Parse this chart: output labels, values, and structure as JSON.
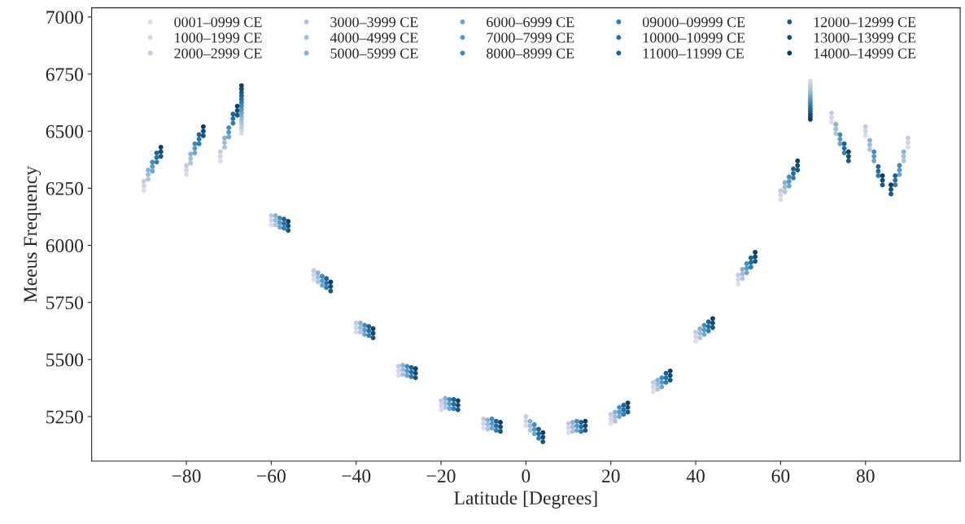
{
  "chart_data": {
    "type": "scatter",
    "xlabel": "Latitude [Degrees]",
    "ylabel": "Meeus Frequency",
    "marker": "circle",
    "grid": false,
    "legend": "top",
    "xlim": [
      -102.3,
      102.3
    ],
    "ylim": [
      5055,
      7040
    ],
    "xticks": [
      {
        "value": -80,
        "label": "−80"
      },
      {
        "value": -60,
        "label": "−60"
      },
      {
        "value": -40,
        "label": "−40"
      },
      {
        "value": -20,
        "label": "−20"
      },
      0,
      20,
      40,
      60,
      80
    ],
    "yticks": [
      5250,
      5500,
      5750,
      6000,
      6250,
      6500,
      6750,
      7000
    ],
    "series": [
      {
        "name": "0001–0999 CE",
        "color": "#dcdcec",
        "x": [
          -90,
          -80,
          -72,
          -67,
          -60,
          -50,
          -40,
          -30,
          -20,
          -10,
          0,
          10,
          20,
          30,
          40,
          50,
          60,
          67,
          72,
          80,
          90
        ],
        "values": [
          6240,
          6310,
          6370,
          6490,
          6090,
          5850,
          5620,
          5430,
          5280,
          5200,
          5210,
          5180,
          5220,
          5360,
          5580,
          5830,
          6200,
          6720,
          6540,
          6480,
          6430
        ]
      },
      {
        "name": "1000–1999 CE",
        "color": "#d0d4e8",
        "x": [
          -90,
          -80,
          -72,
          -67,
          -60,
          -50,
          -40,
          -30,
          -20,
          -10,
          0,
          10,
          20,
          30,
          40,
          50,
          60,
          67,
          72,
          80,
          90
        ],
        "values": [
          6260,
          6330,
          6390,
          6505,
          6110,
          5870,
          5640,
          5450,
          5300,
          5220,
          5230,
          5200,
          5240,
          5380,
          5600,
          5850,
          6220,
          6708,
          6560,
          6500,
          6450
        ]
      },
      {
        "name": "2000–2999 CE",
        "color": "#c3cbe3",
        "x": [
          -90,
          -80,
          -72,
          -67,
          -60,
          -50,
          -40,
          -30,
          -20,
          -10,
          0,
          10,
          20,
          30,
          40,
          50,
          60,
          67,
          72,
          80,
          90
        ],
        "values": [
          6280,
          6350,
          6410,
          6520,
          6130,
          5890,
          5660,
          5470,
          5320,
          5240,
          5250,
          5220,
          5260,
          5400,
          5620,
          5870,
          6240,
          6696,
          6580,
          6520,
          6470
        ]
      },
      {
        "name": "3000–3999 CE",
        "color": "#aec4df",
        "x": [
          -89,
          -79,
          -71,
          -67,
          -59,
          -49,
          -39,
          -29,
          -19,
          -9,
          1,
          11,
          21,
          31,
          41,
          51,
          61,
          67,
          73,
          81,
          89
        ],
        "values": [
          6290,
          6360,
          6430,
          6535,
          6090,
          5840,
          5620,
          5435,
          5290,
          5195,
          5190,
          5185,
          5230,
          5370,
          5595,
          5855,
          6235,
          6684,
          6490,
          6420,
          6370
        ]
      },
      {
        "name": "4000–4999 CE",
        "color": "#9dbedb",
        "x": [
          -89,
          -79,
          -71,
          -67,
          -59,
          -49,
          -39,
          -29,
          -19,
          -9,
          1,
          11,
          21,
          31,
          41,
          51,
          61,
          67,
          73,
          81,
          89
        ],
        "values": [
          6310,
          6380,
          6450,
          6550,
          6110,
          5860,
          5640,
          5455,
          5310,
          5215,
          5210,
          5205,
          5250,
          5390,
          5615,
          5875,
          6255,
          6672,
          6510,
          6440,
          6390
        ]
      },
      {
        "name": "5000–5999 CE",
        "color": "#86b1d5",
        "x": [
          -89,
          -79,
          -71,
          -67,
          -59,
          -49,
          -39,
          -29,
          -19,
          -9,
          1,
          11,
          21,
          31,
          41,
          51,
          61,
          67,
          73,
          81,
          89
        ],
        "values": [
          6330,
          6400,
          6470,
          6565,
          6130,
          5880,
          5660,
          5475,
          5330,
          5235,
          5230,
          5225,
          5270,
          5410,
          5635,
          5895,
          6275,
          6660,
          6530,
          6460,
          6410
        ]
      },
      {
        "name": "6000–6999 CE",
        "color": "#6aa6cf",
        "x": [
          -88,
          -78,
          -70,
          -67,
          -58,
          -48,
          -38,
          -28,
          -18,
          -8,
          2,
          12,
          22,
          32,
          42,
          52,
          62,
          67,
          74,
          82,
          88
        ],
        "values": [
          6325,
          6405,
          6475,
          6580,
          6080,
          5825,
          5610,
          5430,
          5285,
          5200,
          5175,
          5190,
          5250,
          5380,
          5610,
          5880,
          6260,
          6648,
          6445,
          6370,
          6310
        ]
      },
      {
        "name": "7000–7999 CE",
        "color": "#559ac8",
        "x": [
          -88,
          -78,
          -70,
          -67,
          -58,
          -48,
          -38,
          -28,
          -18,
          -8,
          2,
          12,
          22,
          32,
          42,
          52,
          62,
          67,
          74,
          82,
          88
        ],
        "values": [
          6345,
          6425,
          6495,
          6595,
          6100,
          5845,
          5630,
          5450,
          5305,
          5220,
          5195,
          5210,
          5270,
          5400,
          5630,
          5900,
          6280,
          6636,
          6465,
          6390,
          6330
        ]
      },
      {
        "name": "8000–8999 CE",
        "color": "#3f8cc0",
        "x": [
          -88,
          -78,
          -70,
          -67,
          -58,
          -48,
          -38,
          -28,
          -18,
          -8,
          2,
          12,
          22,
          32,
          42,
          52,
          62,
          67,
          74,
          82,
          88
        ],
        "values": [
          6365,
          6445,
          6515,
          6610,
          6120,
          5865,
          5650,
          5470,
          5325,
          5240,
          5215,
          5230,
          5290,
          5420,
          5650,
          5920,
          6300,
          6624,
          6485,
          6410,
          6350
        ]
      },
      {
        "name": "09000–09999 CE",
        "color": "#2c7eb5",
        "x": [
          -87,
          -77,
          -69,
          -67,
          -57,
          -47,
          -37,
          -27,
          -17,
          -7,
          3,
          13,
          23,
          33,
          43,
          53,
          63,
          67,
          75,
          83,
          87
        ],
        "values": [
          6365,
          6445,
          6535,
          6625,
          6075,
          5815,
          5605,
          5425,
          5285,
          5190,
          5155,
          5185,
          5260,
          5400,
          5625,
          5905,
          6295,
          6612,
          6405,
          6305,
          6265
        ]
      },
      {
        "name": "10000–10999 CE",
        "color": "#2170a6",
        "x": [
          -87,
          -77,
          -69,
          -67,
          -57,
          -47,
          -37,
          -27,
          -17,
          -7,
          3,
          13,
          23,
          33,
          43,
          53,
          63,
          67,
          75,
          83,
          87
        ],
        "values": [
          6385,
          6465,
          6555,
          6640,
          6095,
          5835,
          5625,
          5445,
          5305,
          5210,
          5175,
          5205,
          5280,
          5420,
          5645,
          5925,
          6315,
          6600,
          6425,
          6325,
          6285
        ]
      },
      {
        "name": "11000–11999 CE",
        "color": "#1c6394",
        "x": [
          -87,
          -77,
          -69,
          -67,
          -57,
          -47,
          -37,
          -27,
          -17,
          -7,
          3,
          13,
          23,
          33,
          43,
          53,
          63,
          67,
          75,
          83,
          87
        ],
        "values": [
          6405,
          6485,
          6575,
          6655,
          6115,
          5855,
          5645,
          5465,
          5325,
          5230,
          5195,
          5225,
          5300,
          5440,
          5665,
          5945,
          6335,
          6588,
          6445,
          6345,
          6305
        ]
      },
      {
        "name": "12000–12999 CE",
        "color": "#185882",
        "x": [
          -86,
          -76,
          -68,
          -67,
          -56,
          -46,
          -36,
          -26,
          -16,
          -6,
          4,
          14,
          24,
          34,
          44,
          54,
          64,
          67,
          76,
          84,
          86
        ],
        "values": [
          6390,
          6480,
          6570,
          6670,
          6065,
          5800,
          5595,
          5420,
          5280,
          5185,
          5140,
          5190,
          5270,
          5410,
          5640,
          5930,
          6330,
          6576,
          6370,
          6265,
          6225
        ]
      },
      {
        "name": "13000–13999 CE",
        "color": "#134d71",
        "x": [
          -86,
          -76,
          -68,
          -67,
          -56,
          -46,
          -36,
          -26,
          -16,
          -6,
          4,
          14,
          24,
          34,
          44,
          54,
          64,
          67,
          76,
          84,
          86
        ],
        "values": [
          6410,
          6500,
          6590,
          6685,
          6085,
          5820,
          5615,
          5440,
          5300,
          5205,
          5160,
          5210,
          5290,
          5430,
          5660,
          5950,
          6350,
          6564,
          6390,
          6285,
          6245
        ]
      },
      {
        "name": "14000–14999 CE",
        "color": "#0d4163",
        "x": [
          -86,
          -76,
          -68,
          -67,
          -56,
          -46,
          -36,
          -26,
          -16,
          -6,
          4,
          14,
          24,
          34,
          44,
          54,
          64,
          67,
          76,
          84,
          86
        ],
        "values": [
          6430,
          6520,
          6610,
          6700,
          6105,
          5840,
          5635,
          5460,
          5320,
          5225,
          5180,
          5230,
          5310,
          5450,
          5680,
          5970,
          6370,
          6552,
          6410,
          6305,
          6265
        ]
      }
    ]
  }
}
